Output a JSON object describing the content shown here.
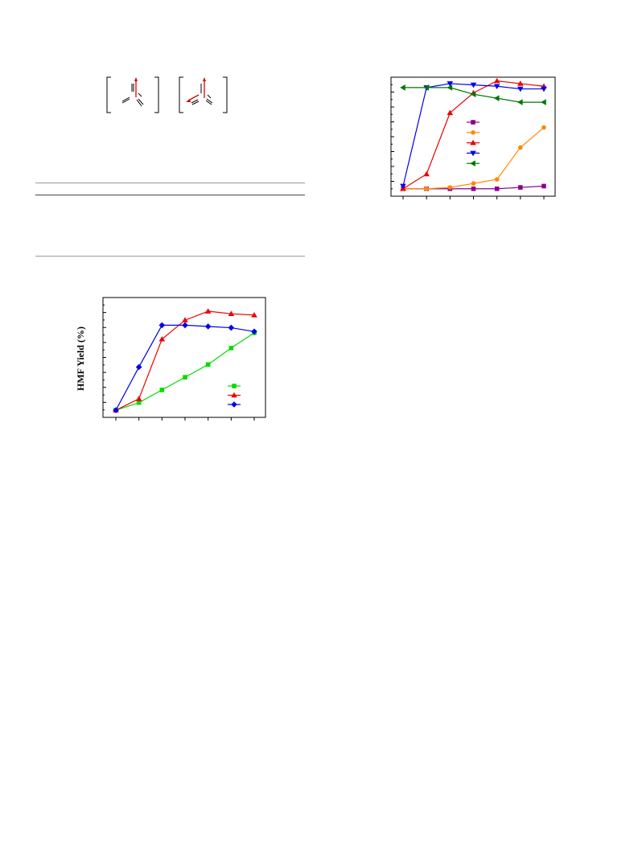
{
  "structures": {
    "left": {
      "name": "complex-bracket-left"
    },
    "right": {
      "name": "complex-bracket-right"
    }
  },
  "table": {
    "rows": []
  },
  "chart_left": {
    "chart_data": {
      "type": "line",
      "ylabel": "HMF Yield (%)",
      "x": [
        1,
        2,
        3,
        4,
        5,
        6,
        7
      ],
      "ylim": [
        0,
        90
      ],
      "series": [
        {
          "color": "#00dd00",
          "marker": "square",
          "values": [
            5,
            11,
            21,
            31,
            41,
            54,
            66
          ]
        },
        {
          "color": "#ee0000",
          "marker": "triangle",
          "values": [
            5,
            14,
            61,
            76,
            83,
            81,
            80
          ]
        },
        {
          "color": "#0000ee",
          "marker": "diamond",
          "values": [
            5,
            39,
            72,
            72,
            71,
            70,
            67
          ]
        }
      ],
      "legend_position": "lower-right"
    }
  },
  "chart_right": {
    "chart_data": {
      "type": "line",
      "x": [
        1,
        2,
        3,
        4,
        5,
        6,
        7
      ],
      "ylim": [
        0,
        90
      ],
      "series": [
        {
          "color": "#8b008b",
          "marker": "square",
          "values": [
            5,
            5,
            5,
            5,
            5,
            6,
            7
          ]
        },
        {
          "color": "#ff8800",
          "marker": "circle",
          "values": [
            5,
            5,
            6,
            9,
            12,
            36,
            51
          ]
        },
        {
          "color": "#ee0000",
          "marker": "triangle",
          "values": [
            5,
            16,
            62,
            77,
            86,
            84,
            82
          ]
        },
        {
          "color": "#0000ee",
          "marker": "triangle-down",
          "values": [
            7,
            81,
            84,
            83,
            82,
            80,
            80
          ]
        },
        {
          "color": "#007700",
          "marker": "triangle-left",
          "values": [
            81,
            81,
            81,
            76,
            73,
            70,
            70
          ]
        }
      ],
      "legend_position": "middle-right"
    }
  }
}
